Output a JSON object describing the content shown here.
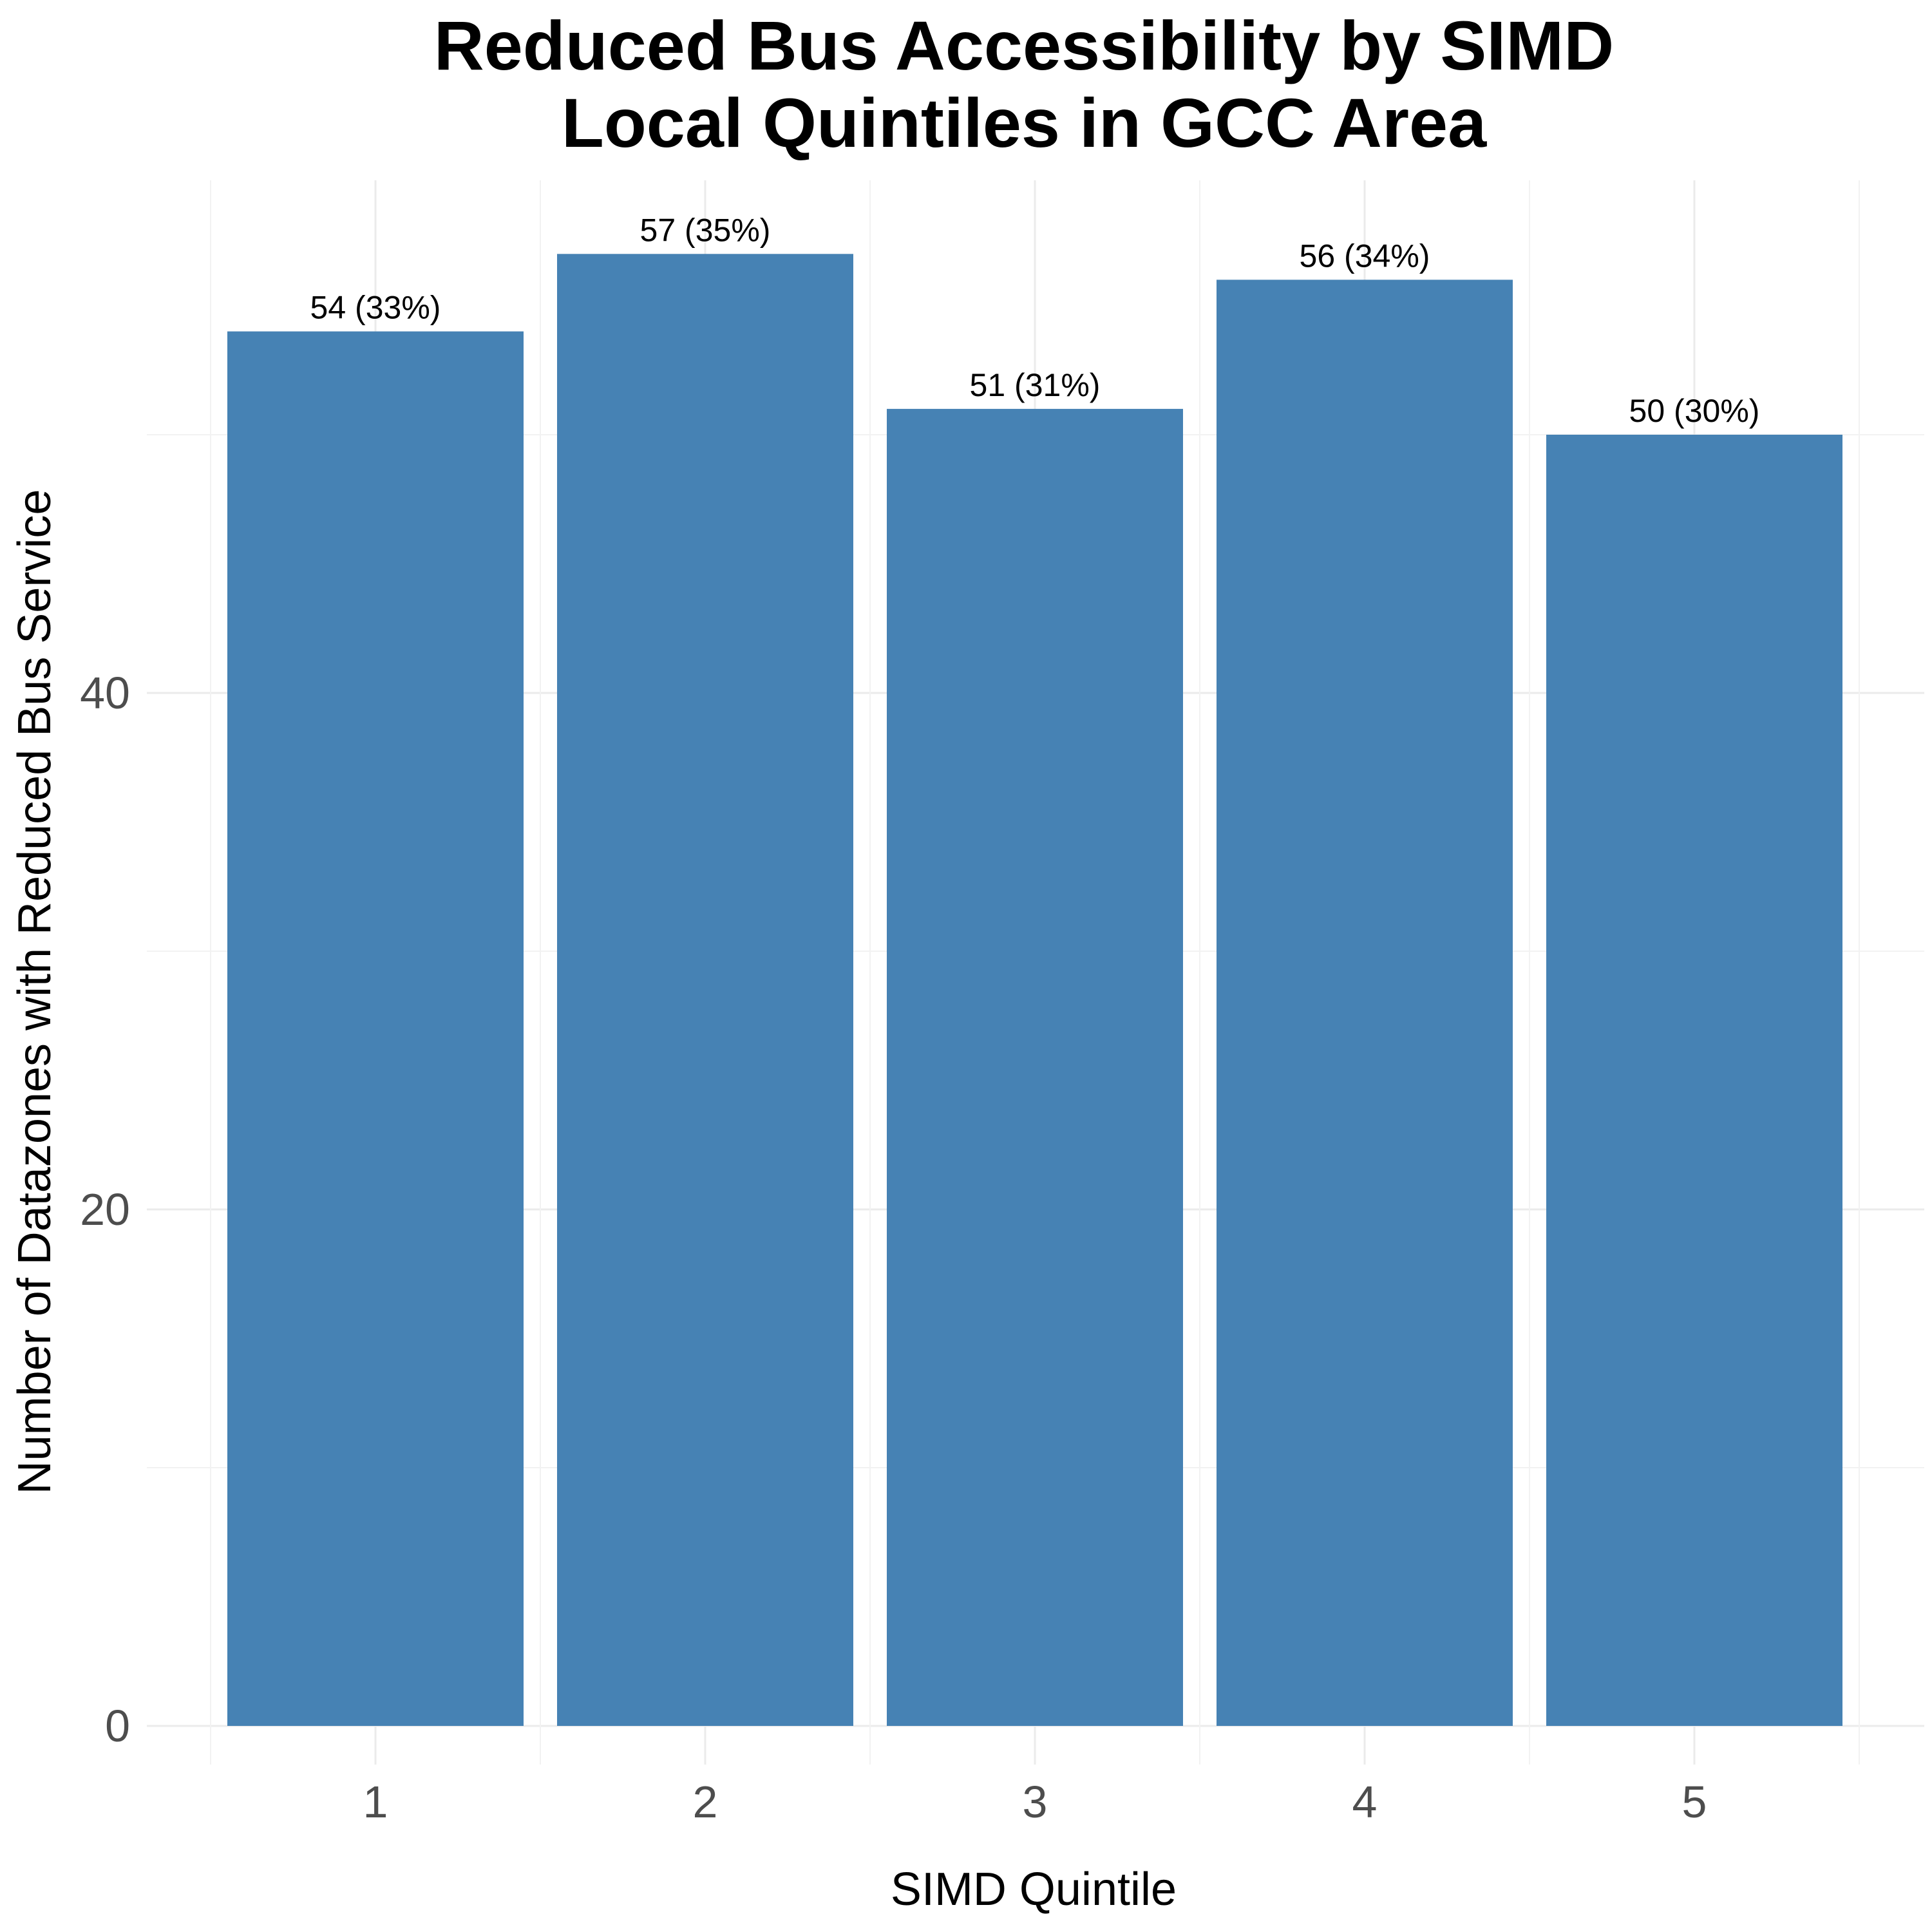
{
  "chart_data": {
    "type": "bar",
    "title_lines": [
      "Reduced Bus Accessibility by SIMD",
      "Local Quintiles in GCC Area"
    ],
    "xlabel": "SIMD Quintile",
    "ylabel": "Number of Datazones with Reduced Bus Service",
    "categories": [
      "1",
      "2",
      "3",
      "4",
      "5"
    ],
    "values": [
      54,
      57,
      51,
      56,
      50
    ],
    "bar_labels": [
      "54 (33%)",
      "57 (35%)",
      "51 (31%)",
      "56 (34%)",
      "50 (30%)"
    ],
    "y_ticks": [
      0,
      20,
      40
    ],
    "y_tick_labels": [
      "0",
      "20",
      "40"
    ],
    "ylim": [
      -2.85,
      59.85
    ],
    "grid": true,
    "legend": "none",
    "bar_color": "#4682B4"
  }
}
